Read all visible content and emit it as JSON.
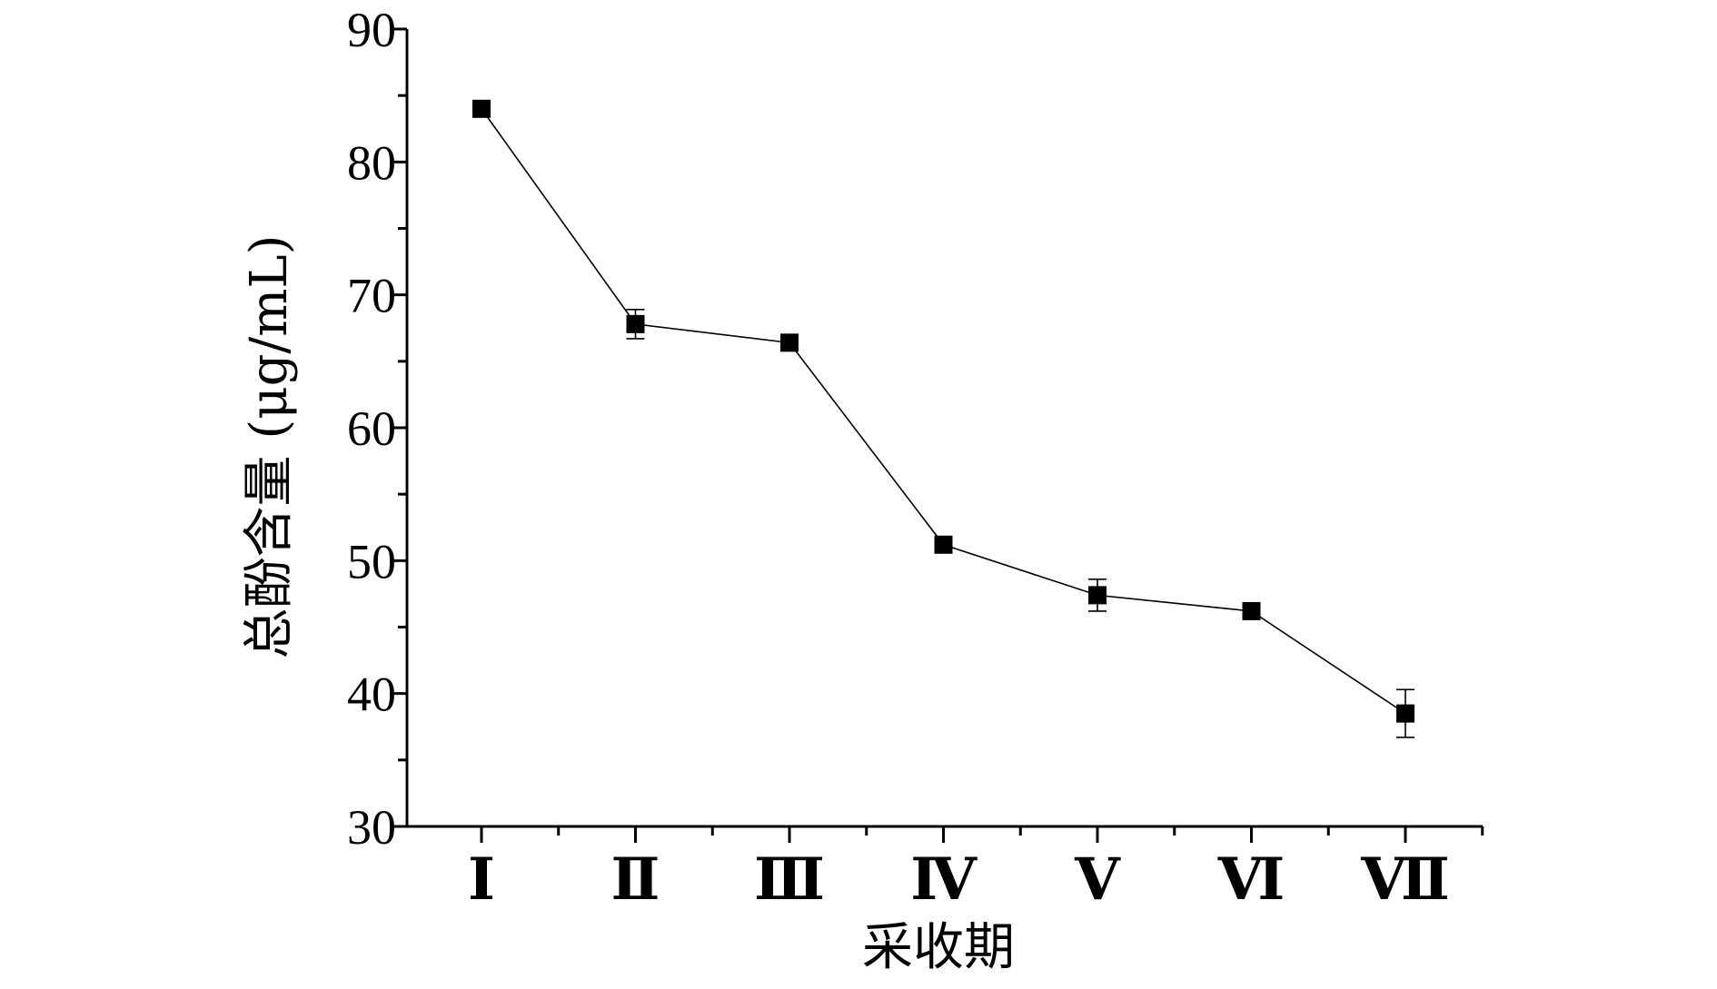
{
  "chart_data": {
    "type": "line",
    "title": "",
    "xlabel": "采收期",
    "ylabel": "总酚含量 (μg/mL)",
    "categories": [
      "Ⅰ",
      "Ⅱ",
      "Ⅲ",
      "Ⅳ",
      "Ⅴ",
      "Ⅵ",
      "Ⅶ"
    ],
    "series": [
      {
        "values": [
          84.0,
          67.8,
          66.4,
          51.2,
          47.4,
          46.2,
          38.5
        ],
        "errors": [
          0.3,
          1.1,
          0.3,
          0.3,
          1.2,
          0.6,
          1.8
        ]
      }
    ],
    "ylim": [
      30,
      90
    ],
    "yticks": [
      30,
      40,
      50,
      60,
      70,
      80,
      90
    ],
    "grid": false,
    "legend": "none",
    "marker": "filled-square",
    "colors": {
      "line": "#000000",
      "marker": "#000000",
      "axis": "#000000"
    }
  }
}
